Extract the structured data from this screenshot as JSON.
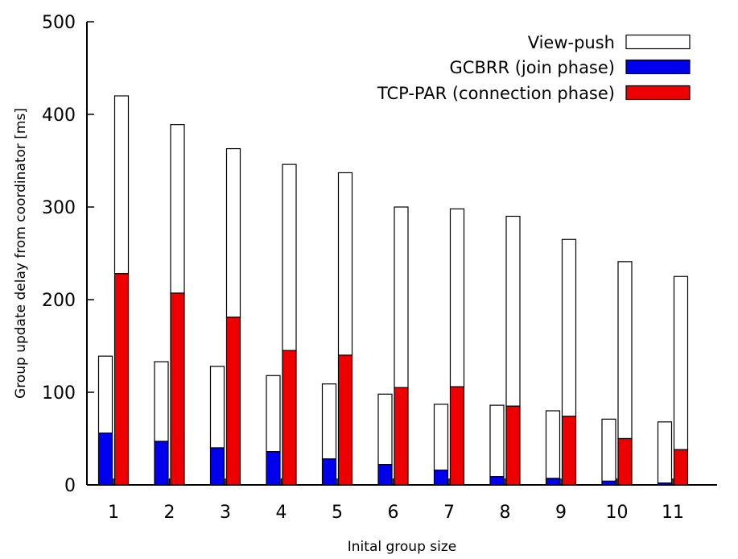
{
  "chart_data": {
    "type": "bar",
    "subtype": "grouped-stacked",
    "xlabel": "Inital group size",
    "ylabel": "Group update delay from coordinator [ms]",
    "categories": [
      "1",
      "2",
      "3",
      "4",
      "5",
      "6",
      "7",
      "8",
      "9",
      "10",
      "11"
    ],
    "ylim": [
      0,
      500
    ],
    "yticks": [
      "0",
      "100",
      "200",
      "300",
      "400",
      "500"
    ],
    "legend_position": "top-right",
    "grid": false,
    "colors": {
      "view_push": "#ffffff",
      "gcbrr": "#0000ee",
      "tcp_par": "#ee0000",
      "outline": "#000000"
    },
    "series": [
      {
        "name": "View-push",
        "stack": "TCP-PAR",
        "values": [
          192,
          182,
          182,
          201,
          197,
          195,
          192,
          205,
          191,
          191,
          187
        ]
      },
      {
        "name": "TCP-PAR (connection phase)",
        "stack": "TCP-PAR",
        "values": [
          228,
          207,
          181,
          145,
          140,
          105,
          106,
          85,
          74,
          50,
          38
        ]
      },
      {
        "name": "View-push",
        "stack": "GCBRR",
        "values": [
          83,
          86,
          88,
          82,
          81,
          76,
          71,
          77,
          73,
          67,
          66
        ]
      },
      {
        "name": "GCBRR (join phase)",
        "stack": "GCBRR",
        "values": [
          56,
          47,
          40,
          36,
          28,
          22,
          16,
          9,
          7,
          4,
          2
        ]
      }
    ],
    "legend": [
      {
        "label": "View-push",
        "color": "#ffffff"
      },
      {
        "label": "GCBRR (join phase)",
        "color": "#0000ee"
      },
      {
        "label": "TCP-PAR (connection phase)",
        "color": "#ee0000"
      }
    ]
  }
}
